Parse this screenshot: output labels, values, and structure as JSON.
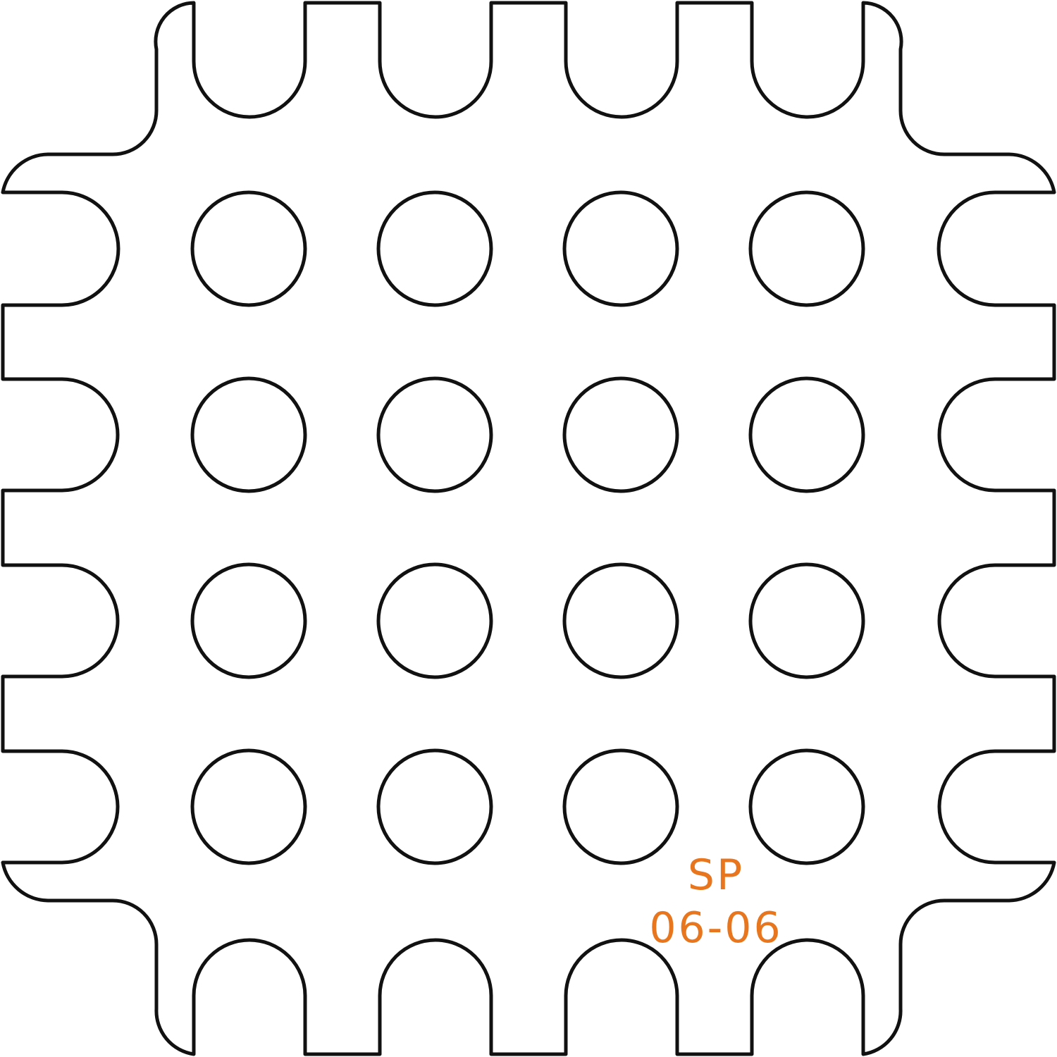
{
  "part": {
    "code_line1": "SP",
    "code_line2": "06-06",
    "label_color": "#E8761E",
    "stroke_color": "#111111",
    "holes": {
      "rows": 4,
      "cols": 4
    }
  }
}
